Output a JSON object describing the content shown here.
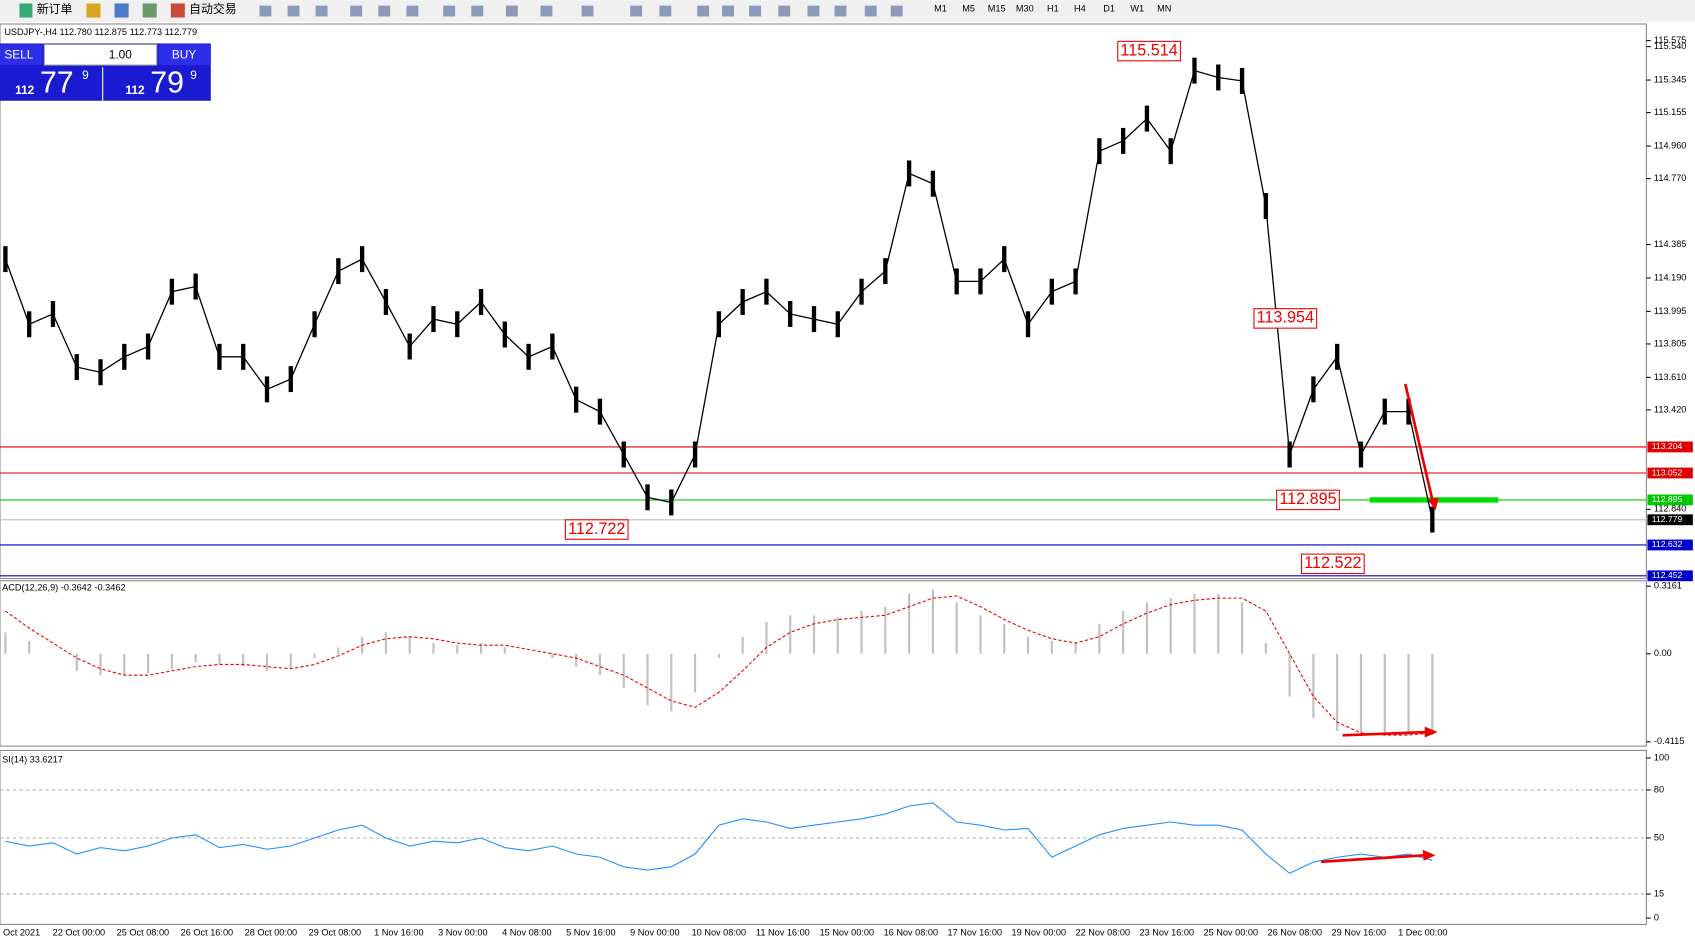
{
  "toolbar": {
    "new_order": "新订单",
    "auto_trading": "自动交易",
    "timeframes": [
      "M1",
      "M5",
      "M15",
      "M30",
      "H1",
      "H4",
      "D1",
      "W1",
      "MN"
    ]
  },
  "chart": {
    "header": "USDJPY-,H4 112.780 112.875 112.773 112.779",
    "trade_panel": {
      "sell": "SELL",
      "buy": "BUY",
      "lot": "1.00",
      "bid_big": "112",
      "bid_main": "77",
      "bid_frac": "9",
      "ask_big": "112",
      "ask_main": "79",
      "ask_frac": "9"
    },
    "ylim": [
      112.436,
      115.672
    ],
    "yticks": [
      {
        "value": 115.54,
        "label": "115.540"
      },
      115.345,
      115.155,
      {
        "value": 114.96,
        "label": "114.960"
      },
      {
        "value": 114.77,
        "label": "114.770"
      },
      115.575,
      114.385,
      {
        "value": 114.19,
        "label": "114.190"
      },
      113.995,
      113.805,
      {
        "value": 113.61,
        "label": "113.610"
      },
      {
        "value": 113.42,
        "label": "113.420"
      },
      {
        "value": 112.84,
        "label": "112.840"
      }
    ],
    "levels": [
      {
        "value": 113.204,
        "color": "#e00000"
      },
      {
        "value": 113.052,
        "color": "#e00000"
      },
      {
        "value": 112.895,
        "color": "#00c800"
      },
      {
        "value": 112.779,
        "color": "#000000"
      },
      {
        "value": 112.632,
        "color": "#0000c8"
      },
      {
        "value": 112.452,
        "color": "#0000c8"
      }
    ],
    "annotations": [
      115.514,
      113.954,
      112.895,
      112.722,
      112.522
    ],
    "price_path": [
      114.3,
      113.92,
      113.98,
      113.67,
      113.64,
      113.73,
      113.79,
      114.11,
      114.14,
      113.73,
      113.73,
      113.54,
      113.6,
      113.92,
      114.23,
      114.3,
      114.05,
      113.79,
      113.95,
      113.92,
      114.05,
      113.86,
      113.73,
      113.79,
      113.48,
      113.41,
      113.16,
      112.91,
      112.88,
      113.16,
      113.92,
      114.05,
      114.11,
      113.98,
      113.95,
      113.92,
      114.11,
      114.23,
      114.8,
      114.74,
      114.17,
      114.17,
      114.3,
      113.92,
      114.11,
      114.17,
      114.93,
      114.99,
      115.12,
      114.93,
      115.4,
      115.36,
      115.34,
      114.61,
      113.16,
      113.54,
      113.73,
      113.16,
      113.41,
      113.41,
      112.78
    ]
  },
  "macd": {
    "label": "ACD(12,26,9) -0.3642 -0.3462",
    "ylim": [
      -0.4315,
      0.3414
    ],
    "yticks": [
      0.3161,
      {
        "value": 0,
        "label": "0.00"
      },
      -0.4115
    ],
    "histogram": [
      0.1,
      0.06,
      0.0,
      -0.08,
      -0.1,
      -0.1,
      -0.09,
      -0.07,
      -0.04,
      -0.05,
      -0.06,
      -0.08,
      -0.07,
      -0.02,
      0.03,
      0.08,
      0.1,
      0.08,
      0.05,
      0.04,
      0.05,
      0.03,
      0.0,
      -0.02,
      -0.06,
      -0.1,
      -0.16,
      -0.24,
      -0.27,
      -0.18,
      -0.02,
      0.08,
      0.15,
      0.18,
      0.18,
      0.17,
      0.2,
      0.22,
      0.28,
      0.3,
      0.24,
      0.18,
      0.14,
      0.08,
      0.06,
      0.05,
      0.14,
      0.2,
      0.24,
      0.26,
      0.28,
      0.28,
      0.24,
      0.05,
      -0.2,
      -0.3,
      -0.36,
      -0.38,
      -0.38,
      -0.38,
      -0.38
    ],
    "signal": [
      0.2,
      0.12,
      0.05,
      -0.02,
      -0.07,
      -0.1,
      -0.1,
      -0.08,
      -0.06,
      -0.05,
      -0.05,
      -0.06,
      -0.07,
      -0.05,
      -0.01,
      0.04,
      0.07,
      0.08,
      0.07,
      0.05,
      0.04,
      0.04,
      0.02,
      0.0,
      -0.02,
      -0.06,
      -0.1,
      -0.16,
      -0.22,
      -0.25,
      -0.18,
      -0.08,
      0.03,
      0.1,
      0.14,
      0.16,
      0.17,
      0.18,
      0.22,
      0.26,
      0.27,
      0.22,
      0.16,
      0.11,
      0.07,
      0.05,
      0.08,
      0.14,
      0.19,
      0.23,
      0.25,
      0.26,
      0.26,
      0.2,
      0.0,
      -0.2,
      -0.32,
      -0.37,
      -0.38,
      -0.38,
      -0.37
    ]
  },
  "rsi": {
    "label": "SI(14) 33.6217",
    "ylim": [
      -4,
      104.7
    ],
    "yticks": [
      100,
      80,
      50,
      15,
      0
    ],
    "levels": [
      80,
      50,
      15
    ],
    "values": [
      48,
      45,
      47,
      40,
      44,
      42,
      45,
      50,
      52,
      44,
      46,
      43,
      45,
      50,
      55,
      58,
      50,
      45,
      48,
      47,
      50,
      44,
      42,
      45,
      40,
      38,
      32,
      30,
      32,
      40,
      58,
      62,
      60,
      56,
      58,
      60,
      62,
      65,
      70,
      72,
      60,
      58,
      55,
      56,
      38,
      45,
      52,
      56,
      58,
      60,
      58,
      58,
      55,
      40,
      28,
      35,
      38,
      40,
      38,
      40,
      36
    ]
  },
  "dates": [
    "Oct 2021",
    "22 Oct 00:00",
    "25 Oct 08:00",
    "26 Oct 16:00",
    "28 Oct 00:00",
    "29 Oct 08:00",
    "1 Nov 16:00",
    "3 Nov 00:00",
    "4 Nov 08:00",
    "5 Nov 16:00",
    "9 Nov 00:00",
    "10 Nov 08:00",
    "11 Nov 16:00",
    "15 Nov 00:00",
    "16 Nov 08:00",
    "17 Nov 16:00",
    "19 Nov 00:00",
    "22 Nov 08:00",
    "23 Nov 16:00",
    "25 Nov 00:00",
    "26 Nov 08:00",
    "29 Nov 16:00",
    "1 Dec 00:00"
  ]
}
